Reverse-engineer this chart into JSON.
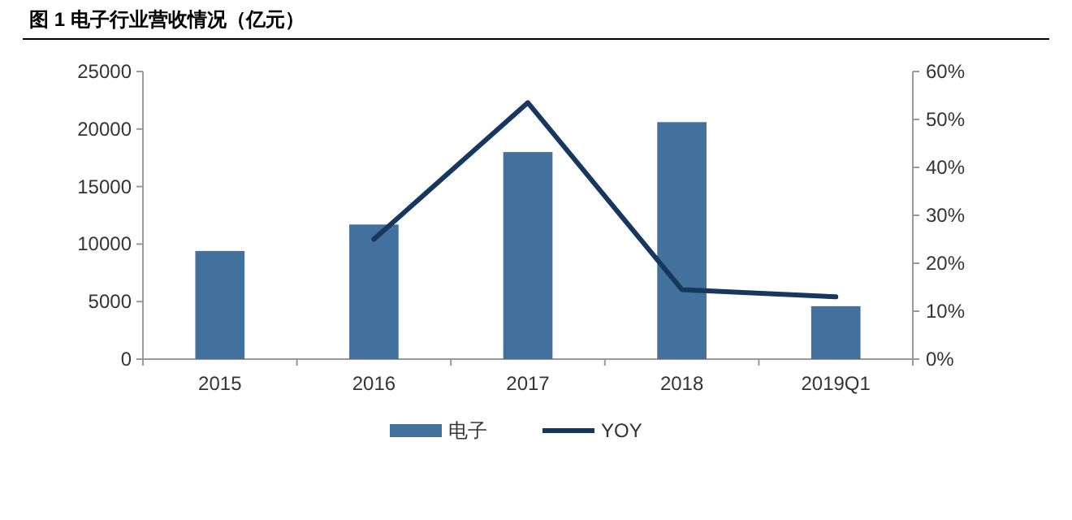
{
  "chart_data": {
    "type": "bar",
    "title": "图 1  电子行业营收情况（亿元）",
    "categories": [
      "2015",
      "2016",
      "2017",
      "2018",
      "2019Q1"
    ],
    "series": [
      {
        "name": "电子",
        "color": "#41719c",
        "values": [
          9400,
          11700,
          18000,
          20600,
          4600
        ]
      },
      {
        "name": "YOY",
        "type": "line",
        "axis": "y2",
        "color": "#17375e",
        "values": [
          null,
          25,
          53.5,
          14.5,
          13
        ]
      }
    ],
    "ylim": [
      0,
      25000
    ],
    "yticks": [
      0,
      5000,
      10000,
      15000,
      20000,
      25000
    ],
    "y2lim": [
      0,
      60
    ],
    "y2ticks": [
      {
        "value": 0,
        "label": "0%"
      },
      {
        "value": 10,
        "label": "10%"
      },
      {
        "value": 20,
        "label": "20%"
      },
      {
        "value": 30,
        "label": "30%"
      },
      {
        "value": 40,
        "label": "40%"
      },
      {
        "value": 50,
        "label": "50%"
      },
      {
        "value": 60,
        "label": "60%"
      }
    ],
    "legend": "bottom"
  }
}
